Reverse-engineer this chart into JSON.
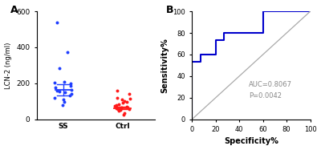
{
  "ss_points": [
    540,
    375,
    285,
    210,
    205,
    200,
    185,
    175,
    165,
    160,
    155,
    150,
    140,
    130,
    120,
    110,
    95,
    80
  ],
  "ctrl_points": [
    160,
    140,
    120,
    115,
    110,
    100,
    95,
    90,
    85,
    80,
    75,
    70,
    65,
    62,
    58,
    55,
    50,
    45,
    35,
    25
  ],
  "ss_mean": 163,
  "ss_sem_hi": 32,
  "ss_sem_lo": 32,
  "ctrl_mean": 62,
  "ctrl_sem_hi": 8,
  "ctrl_sem_lo": 8,
  "ss_color": "#1F3EFF",
  "ctrl_color": "#FF1A1A",
  "ylabel": "LCN-2 (ng/ml)",
  "ylim": [
    0,
    600
  ],
  "yticks": [
    0,
    200,
    400,
    600
  ],
  "panel_a_label": "A",
  "panel_b_label": "B",
  "roc_x": [
    0,
    0,
    7,
    7,
    13,
    20,
    20,
    27,
    27,
    60,
    60,
    100
  ],
  "roc_y": [
    0,
    53,
    53,
    60,
    60,
    60,
    73,
    73,
    80,
    80,
    100,
    100
  ],
  "roc_color": "#0000CC",
  "auc_text": "AUC=0.8067",
  "p_text": "P=0.0042",
  "diag_color": "#AAAAAA",
  "xlabel_b": "Specificity%",
  "ylabel_b": "Sensitivity%",
  "xticks_b": [
    0,
    20,
    40,
    60,
    80,
    100
  ],
  "yticks_b": [
    0,
    20,
    40,
    60,
    80,
    100
  ],
  "bg_color": "#FFFFFF"
}
